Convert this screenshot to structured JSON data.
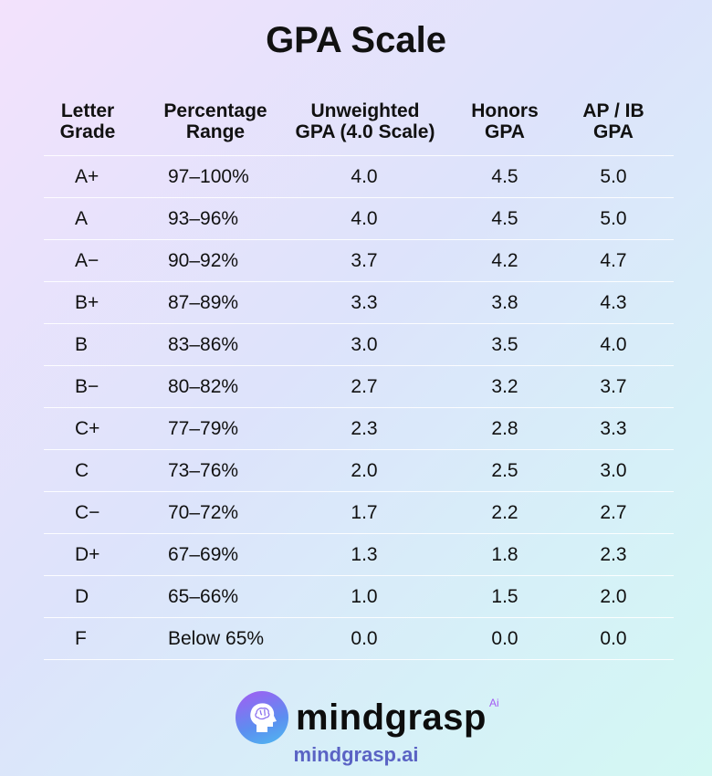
{
  "title": "GPA Scale",
  "headers": [
    {
      "line1": "Letter",
      "line2": "Grade"
    },
    {
      "line1": "Percentage",
      "line2": "Range"
    },
    {
      "line1": "Unweighted",
      "line2": "GPA (4.0 Scale)"
    },
    {
      "line1": "Honors",
      "line2": "GPA"
    },
    {
      "line1": "AP / IB",
      "line2": "GPA"
    }
  ],
  "rows": [
    [
      "A+",
      "97–100%",
      "4.0",
      "4.5",
      "5.0"
    ],
    [
      "A",
      "93–96%",
      "4.0",
      "4.5",
      "5.0"
    ],
    [
      "A−",
      "90–92%",
      "3.7",
      "4.2",
      "4.7"
    ],
    [
      "B+",
      "87–89%",
      "3.3",
      "3.8",
      "4.3"
    ],
    [
      "B",
      "83–86%",
      "3.0",
      "3.5",
      "4.0"
    ],
    [
      "B−",
      "80–82%",
      "2.7",
      "3.2",
      "3.7"
    ],
    [
      "C+",
      "77–79%",
      "2.3",
      "2.8",
      "3.3"
    ],
    [
      "C",
      "73–76%",
      "2.0",
      "2.5",
      "3.0"
    ],
    [
      "C−",
      "70–72%",
      "1.7",
      "2.2",
      "2.7"
    ],
    [
      "D+",
      "67–69%",
      "1.3",
      "1.8",
      "2.3"
    ],
    [
      "D",
      "65–66%",
      "1.0",
      "1.5",
      "2.0"
    ],
    [
      "F",
      "Below 65%",
      "0.0",
      "0.0",
      "0.0"
    ]
  ],
  "footer": {
    "brand": "mindgrasp",
    "brand_suffix": "Ai",
    "url": "mindgrasp.ai",
    "logo_icon": "head-brain-icon"
  },
  "colors": {
    "url": "#5a63c4",
    "logo_gradient_start": "#a45cf3",
    "logo_gradient_end": "#4fb9f0"
  }
}
